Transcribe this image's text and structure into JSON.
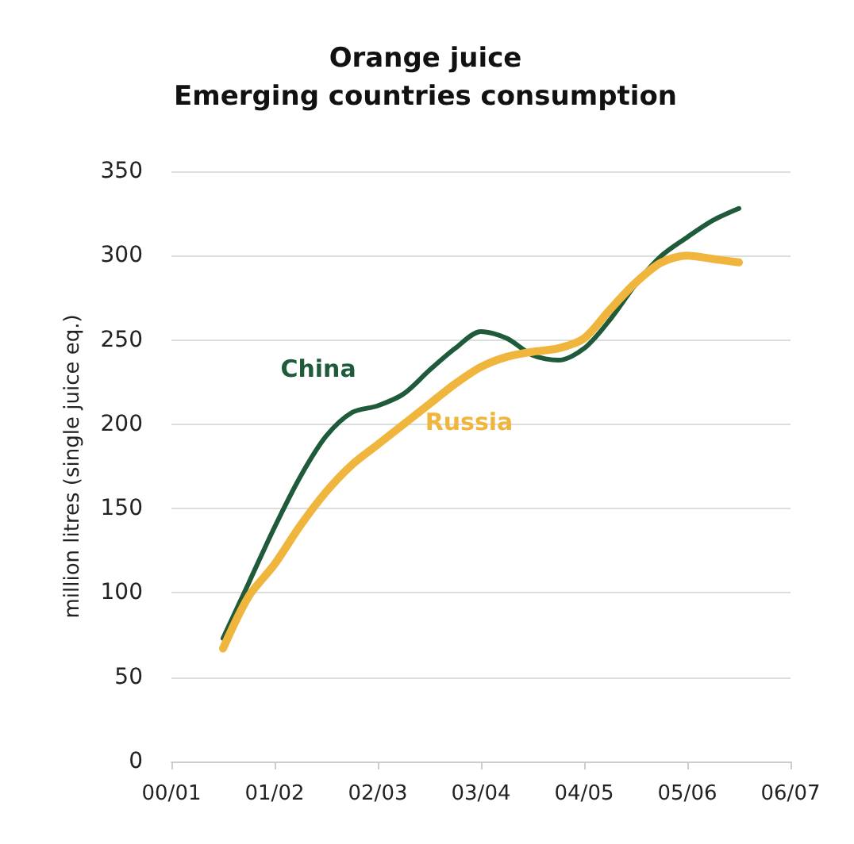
{
  "chart_data": {
    "type": "line",
    "title": "Orange juice\nEmerging countries consumption",
    "ylabel": "million litres (single juice eq.)",
    "categories": [
      "00/01",
      null,
      null,
      null,
      "01/02",
      null,
      null,
      null,
      "02/03",
      null,
      null,
      null,
      "03/04",
      null,
      null,
      null,
      "04/05",
      null,
      null,
      null,
      "05/06",
      null,
      null,
      null,
      "06/07"
    ],
    "ylim": [
      0,
      350
    ],
    "yticks": [
      0,
      50,
      100,
      150,
      200,
      250,
      300,
      350
    ],
    "grid": "y",
    "marker": "none",
    "line_style": "solid",
    "legend": false,
    "series": [
      {
        "name": "China",
        "color": "#1f5a3a",
        "values": [
          null,
          null,
          73,
          106,
          139,
          169,
          193,
          207,
          211,
          218,
          232,
          245,
          255,
          251,
          241,
          238,
          245,
          262,
          283,
          300,
          311,
          321,
          328,
          null,
          null
        ]
      },
      {
        "name": "Russia",
        "color": "#f0b53c",
        "values": [
          null,
          null,
          67,
          98,
          117,
          140,
          160,
          176,
          188,
          200,
          212,
          224,
          234,
          240,
          243,
          245,
          251,
          268,
          284,
          296,
          300,
          298,
          296,
          null,
          null
        ]
      }
    ]
  }
}
